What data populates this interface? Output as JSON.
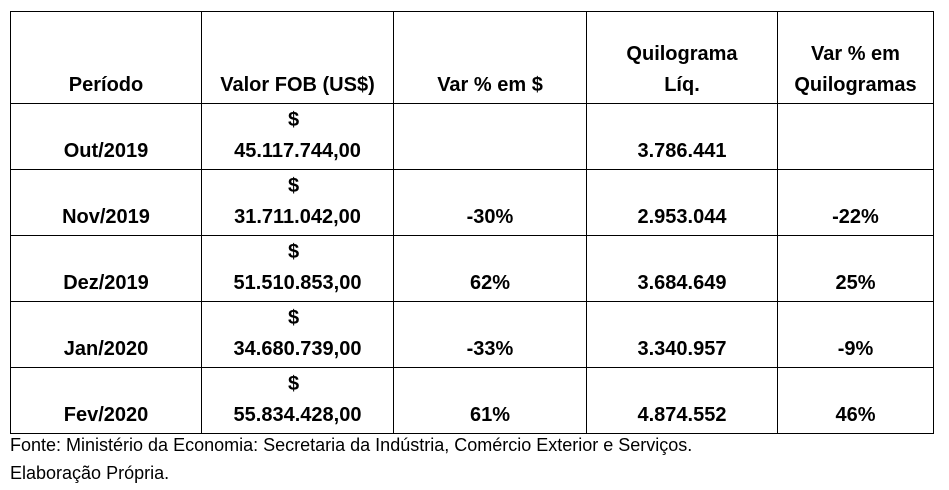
{
  "table": {
    "headers": [
      {
        "lines": [
          "Período"
        ]
      },
      {
        "lines": [
          "Valor FOB (US$)"
        ]
      },
      {
        "lines": [
          "Var % em $"
        ]
      },
      {
        "lines": [
          "Quilograma",
          "Líq."
        ]
      },
      {
        "lines": [
          "Var % em",
          "Quilogramas"
        ]
      }
    ],
    "rows": [
      {
        "periodo": "Out/2019",
        "currency": "$",
        "valor": "45.117.744,00",
        "var_valor": "",
        "kg": "3.786.441",
        "var_kg": ""
      },
      {
        "periodo": "Nov/2019",
        "currency": "$",
        "valor": "31.711.042,00",
        "var_valor": "-30%",
        "kg": "2.953.044",
        "var_kg": "-22%"
      },
      {
        "periodo": "Dez/2019",
        "currency": "$",
        "valor": "51.510.853,00",
        "var_valor": "62%",
        "kg": "3.684.649",
        "var_kg": "25%"
      },
      {
        "periodo": "Jan/2020",
        "currency": "$",
        "valor": "34.680.739,00",
        "var_valor": "-33%",
        "kg": "3.340.957",
        "var_kg": "-9%"
      },
      {
        "periodo": "Fev/2020",
        "currency": "$",
        "valor": "55.834.428,00",
        "var_valor": "61%",
        "kg": "4.874.552",
        "var_kg": "46%"
      }
    ]
  },
  "footer": {
    "source": "Fonte: Ministério da Economia: Secretaria da Indústria, Comércio Exterior e Serviços.",
    "note": "Elaboração Própria."
  }
}
